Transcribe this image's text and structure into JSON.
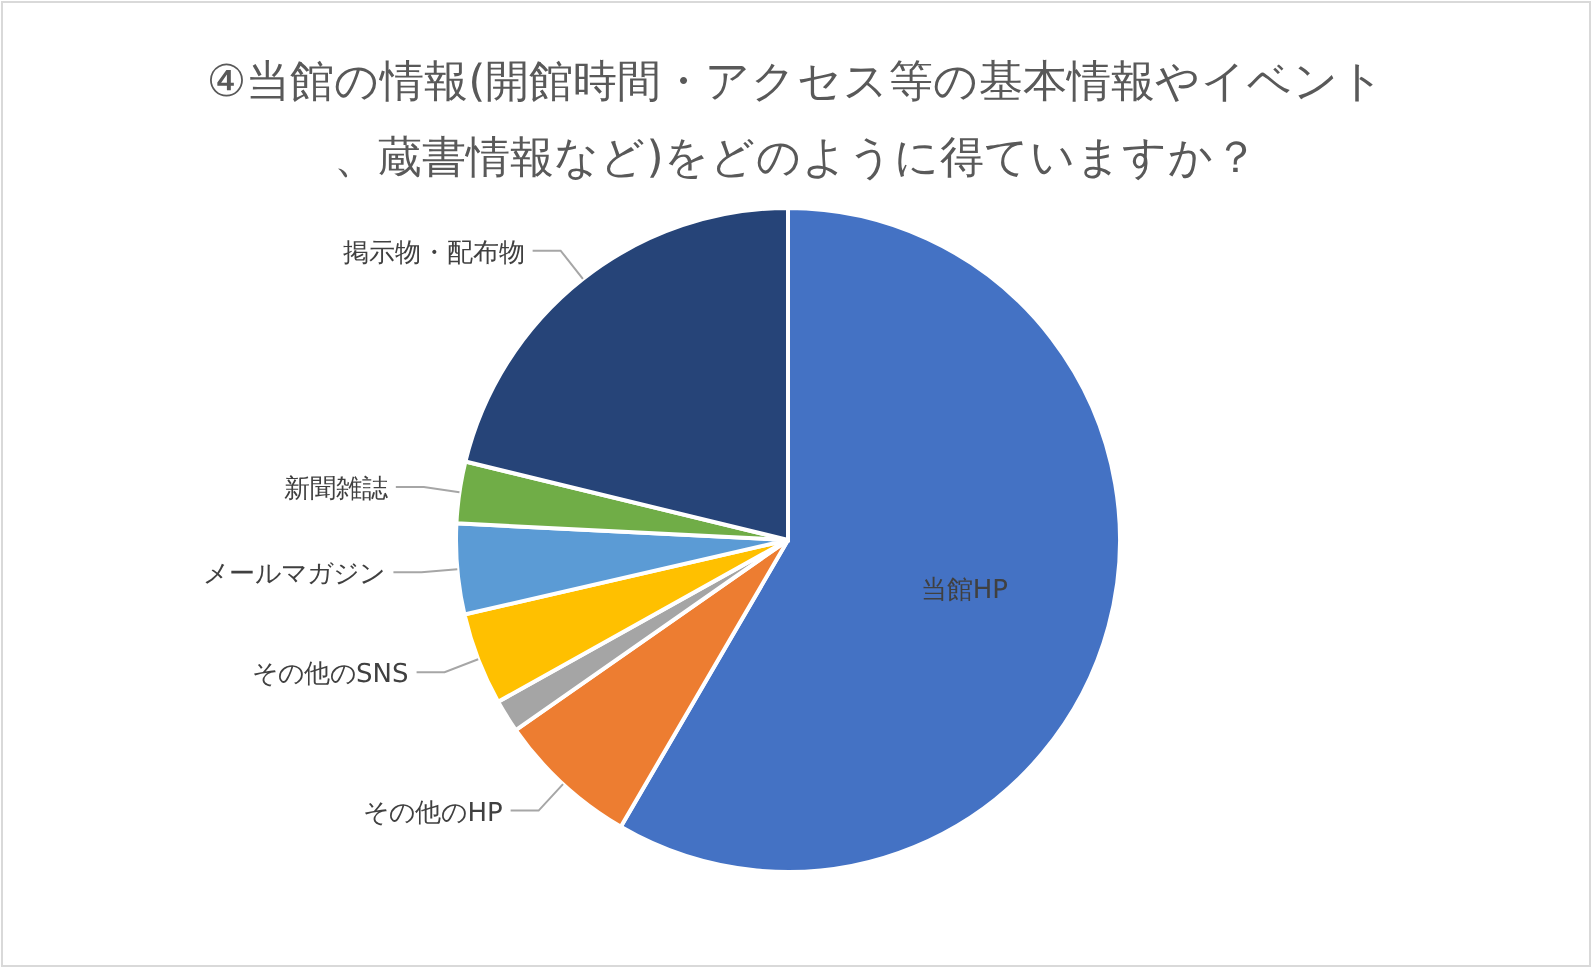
{
  "chart_data": {
    "type": "pie",
    "title": "④当館の情報(開館時間・アクセス等の基本情報やイベント、蔵書情報など)をどのように得ていますか？",
    "categories": [
      "当館HP",
      "その他のHP",
      null,
      "その他のSNS",
      "メールマガジン",
      "新聞雑誌",
      "掲示物・配布物"
    ],
    "values": [
      58.4,
      6.9,
      1.6,
      4.5,
      4.4,
      3.0,
      21.2
    ],
    "colors": [
      "#4472c4",
      "#ed7d31",
      "#a5a5a5",
      "#ffc000",
      "#5b9bd5",
      "#70ad47",
      "#264478"
    ],
    "legend": false
  }
}
